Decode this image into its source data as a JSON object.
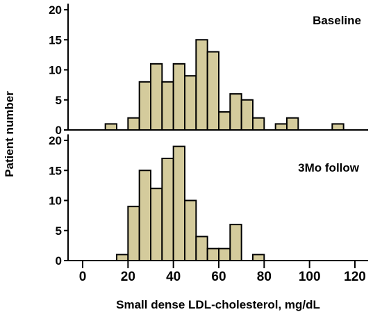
{
  "chart_data": {
    "type": "bar",
    "xlabel": "Small dense LDL-cholesterol, mg/dL",
    "ylabel": "Patient number",
    "xlim": [
      -5,
      125
    ],
    "x_ticks": [
      0,
      20,
      40,
      60,
      80,
      100,
      120
    ],
    "bin_width": 5,
    "bar_color": "#d4cb9c",
    "panels": [
      {
        "name": "Baseline",
        "ylim": [
          0,
          21
        ],
        "y_ticks": [
          0,
          5,
          10,
          15,
          20
        ],
        "bins": [
          {
            "x": 12.5,
            "count": 1
          },
          {
            "x": 22.5,
            "count": 2
          },
          {
            "x": 27.5,
            "count": 8
          },
          {
            "x": 32.5,
            "count": 11
          },
          {
            "x": 37.5,
            "count": 8
          },
          {
            "x": 42.5,
            "count": 11
          },
          {
            "x": 47.5,
            "count": 9
          },
          {
            "x": 52.5,
            "count": 15
          },
          {
            "x": 57.5,
            "count": 13
          },
          {
            "x": 62.5,
            "count": 3
          },
          {
            "x": 67.5,
            "count": 6
          },
          {
            "x": 72.5,
            "count": 5
          },
          {
            "x": 77.5,
            "count": 2
          },
          {
            "x": 87.5,
            "count": 1
          },
          {
            "x": 92.5,
            "count": 2
          },
          {
            "x": 112.5,
            "count": 1
          }
        ]
      },
      {
        "name": "3Mo follow",
        "ylim": [
          0,
          21
        ],
        "y_ticks": [
          0,
          5,
          10,
          15,
          20
        ],
        "bins": [
          {
            "x": 17.5,
            "count": 1
          },
          {
            "x": 22.5,
            "count": 9
          },
          {
            "x": 27.5,
            "count": 15
          },
          {
            "x": 32.5,
            "count": 12
          },
          {
            "x": 37.5,
            "count": 17
          },
          {
            "x": 42.5,
            "count": 19
          },
          {
            "x": 47.5,
            "count": 10
          },
          {
            "x": 52.5,
            "count": 4
          },
          {
            "x": 57.5,
            "count": 2
          },
          {
            "x": 62.5,
            "count": 2
          },
          {
            "x": 67.5,
            "count": 6
          },
          {
            "x": 77.5,
            "count": 1
          }
        ]
      }
    ]
  }
}
